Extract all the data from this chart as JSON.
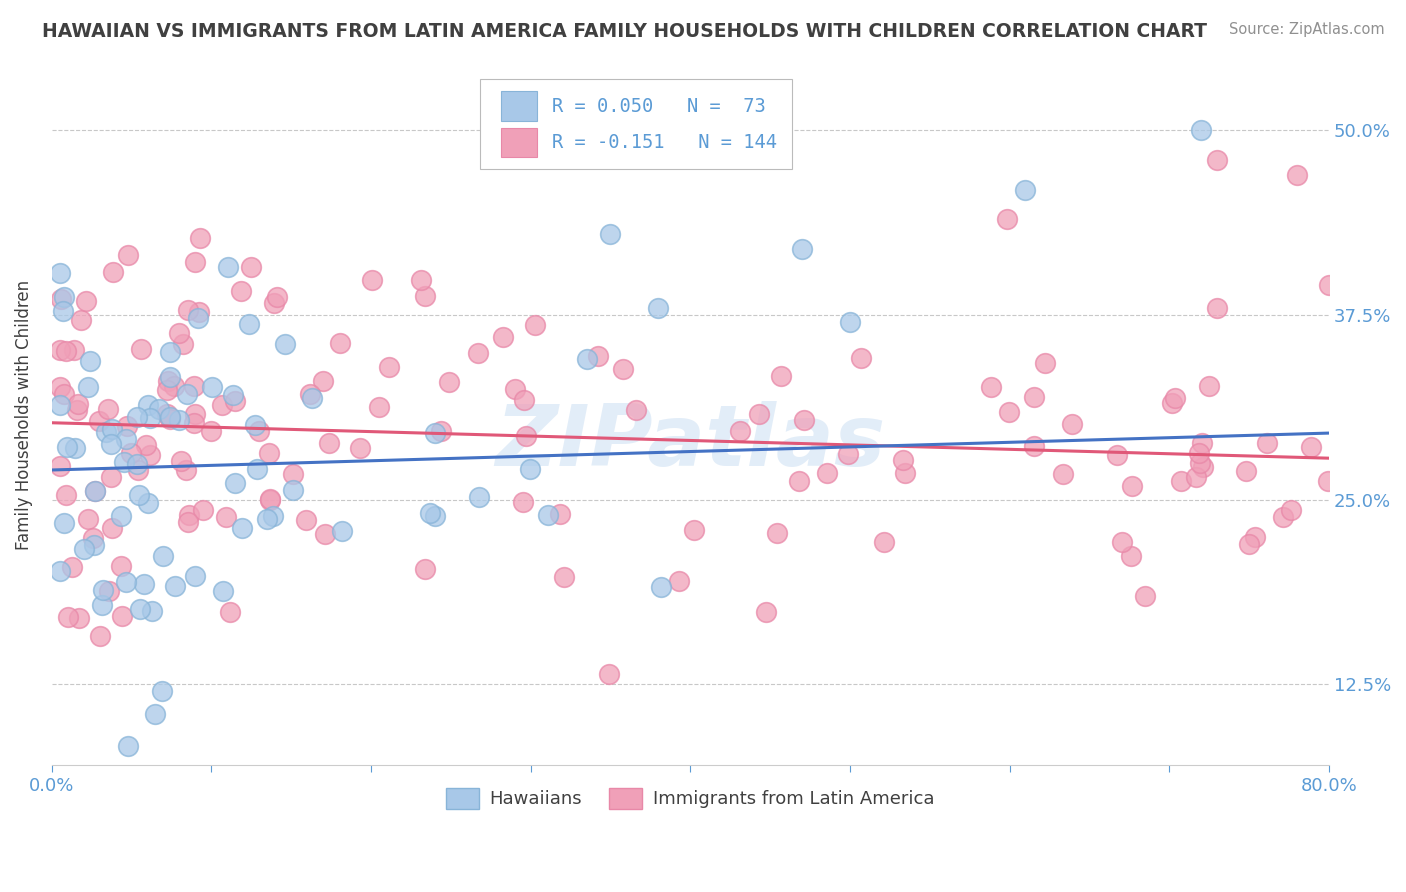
{
  "title": "HAWAIIAN VS IMMIGRANTS FROM LATIN AMERICA FAMILY HOUSEHOLDS WITH CHILDREN CORRELATION CHART",
  "source": "Source: ZipAtlas.com",
  "ylabel": "Family Households with Children",
  "xlim": [
    0.0,
    0.8
  ],
  "ylim": [
    0.07,
    0.545
  ],
  "xticks": [
    0.0,
    0.1,
    0.2,
    0.3,
    0.4,
    0.5,
    0.6,
    0.7,
    0.8
  ],
  "xticklabels": [
    "0.0%",
    "",
    "",
    "",
    "",
    "",
    "",
    "",
    "80.0%"
  ],
  "yticks": [
    0.125,
    0.25,
    0.375,
    0.5
  ],
  "yticklabels": [
    "12.5%",
    "25.0%",
    "37.5%",
    "50.0%"
  ],
  "blue_color": "#a8c8e8",
  "pink_color": "#f0a0b8",
  "blue_line_color": "#4472c4",
  "pink_line_color": "#e05878",
  "title_color": "#404040",
  "axis_color": "#5b9bd5",
  "watermark": "ZIPatlas",
  "legend_R_blue": "R = 0.050",
  "legend_N_blue": "N =  73",
  "legend_R_pink": "R = -0.151",
  "legend_N_pink": "N = 144",
  "background_color": "#ffffff",
  "grid_color": "#c8c8c8",
  "hawaiians_label": "Hawaiians",
  "immigrants_label": "Immigrants from Latin America",
  "blue_trend": [
    0.27,
    0.295
  ],
  "pink_trend": [
    0.302,
    0.278
  ]
}
